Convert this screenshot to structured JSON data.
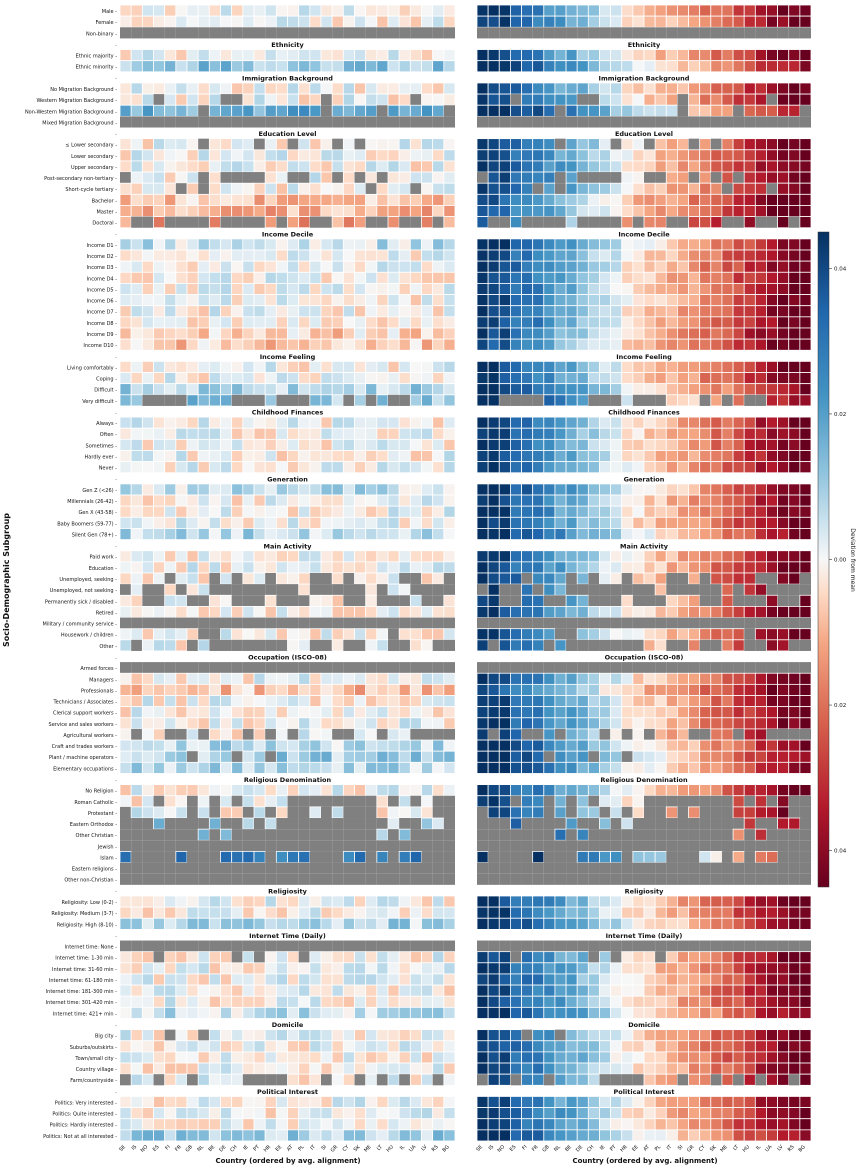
{
  "chart_data": {
    "type": "heatmap",
    "ylabel": "Socio-Demographic Subgroup",
    "xlabel": "Country (ordered by avg. alignment)",
    "colorbar": {
      "label": "Deviation from mean",
      "ticks": [
        "0.04",
        "0.02",
        "0.00",
        "0.02",
        "0.04"
      ],
      "range": [
        -0.045,
        0.045
      ]
    },
    "countries": [
      "SE",
      "IS",
      "NO",
      "ES",
      "FI",
      "FR",
      "GB",
      "NL",
      "BE",
      "DE",
      "CH",
      "IE",
      "PT",
      "HR",
      "EE",
      "AT",
      "PL",
      "IT",
      "SI",
      "GR",
      "CY",
      "SK",
      "ME",
      "LT",
      "HU",
      "IL",
      "UA",
      "LV",
      "RS",
      "BG"
    ],
    "groups": [
      {
        "title": "",
        "rows": [
          "Male",
          "Female",
          "Non-binary"
        ]
      },
      {
        "title": "Ethnicity",
        "rows": [
          "Ethnic majority",
          "Ethnic minority"
        ]
      },
      {
        "title": "Immigration Background",
        "rows": [
          "No Migration Background",
          "Western Migration Background",
          "Non-Western Migration Background",
          "Mixed Migration Background"
        ]
      },
      {
        "title": "Education Level",
        "rows": [
          "≤ Lower secondary",
          "Lower secondary",
          "Upper secondary",
          "Post-secondary non-tertiary",
          "Short-cycle tertiary",
          "Bachelor",
          "Master",
          "Doctoral"
        ]
      },
      {
        "title": "Income Decile",
        "rows": [
          "Income D1",
          "Income D2",
          "Income D3",
          "Income D4",
          "Income D5",
          "Income D6",
          "Income D7",
          "Income D8",
          "Income D9",
          "Income D10"
        ]
      },
      {
        "title": "Income Feeling",
        "rows": [
          "Living comfortably",
          "Coping",
          "Difficult",
          "Very difficult"
        ]
      },
      {
        "title": "Childhood Finances",
        "rows": [
          "Always",
          "Often",
          "Sometimes",
          "Hardly ever",
          "Never"
        ]
      },
      {
        "title": "Generation",
        "rows": [
          "Gen Z (<26)",
          "Millennials (26-42)",
          "Gen X (43-58)",
          "Baby Boomers (59-77)",
          "Silent Gen (78+)"
        ]
      },
      {
        "title": "Main Activity",
        "rows": [
          "Paid work",
          "Education",
          "Unemployed, seeking",
          "Unemployed, not seeking",
          "Permanently sick / disabled",
          "Retired",
          "Military / community service",
          "Housework / children",
          "Other"
        ]
      },
      {
        "title": "Occupation (ISCO-08)",
        "rows": [
          "Armed forces",
          "Managers",
          "Professionals",
          "Technicians / Associates",
          "Clerical support workers",
          "Service and sales workers",
          "Agricultural workers",
          "Craft and trades workers",
          "Plant / machine operators",
          "Elementary occupations"
        ]
      },
      {
        "title": "Religious Denomination",
        "rows": [
          "No Religion",
          "Roman Catholic",
          "Protestant",
          "Eastern Orthodox",
          "Other Christian",
          "Jewish",
          "Islam",
          "Eastern religions",
          "Other non-Christian"
        ]
      },
      {
        "title": "Religiosity",
        "rows": [
          "Religiosity: Low (0-2)",
          "Religiosity: Medium (3-7)",
          "Religiosity: High (8-10)"
        ]
      },
      {
        "title": "Internet Time (Daily)",
        "rows": [
          "Internet time: None",
          "Internet time: 1-30 min",
          "Internet time: 31-60 min",
          "Internet time: 61-180 min",
          "Internet time: 181-300 min",
          "Internet time: 301-420 min",
          "Internet time: 421+ min"
        ]
      },
      {
        "title": "Domicile",
        "rows": [
          "Big city",
          "Suburbs/outskirts",
          "Town/small city",
          "Country village",
          "Farm/countryside"
        ]
      },
      {
        "title": "Political Interest",
        "rows": [
          "Politics: Very interested",
          "Politics: Quite interested",
          "Politics: Hardly interested",
          "Politics: Not at all interested"
        ]
      }
    ],
    "full_missing_rows": [
      "Non-binary",
      "Mixed Migration Background",
      "Military / community service",
      "Armed forces",
      "Jewish",
      "Eastern religions",
      "Other non-Christian",
      "Internet time: None"
    ],
    "right_panel_country_gradient": [
      -0.045,
      -0.042,
      -0.04,
      -0.032,
      -0.03,
      -0.028,
      -0.024,
      -0.02,
      -0.018,
      -0.014,
      -0.01,
      -0.006,
      -0.003,
      0.002,
      0.004,
      0.006,
      0.008,
      0.01,
      0.012,
      0.014,
      0.017,
      0.02,
      0.022,
      0.026,
      0.03,
      0.034,
      0.038,
      0.041,
      0.044,
      0.047
    ],
    "notes_on_values": "Left panel: subgroup deviation from country mean (small, mostly near 0). Right panel: country-level deviation dominating (blue for SE/IS/NO..., red for LV/RS/BG). Gray = missing."
  }
}
